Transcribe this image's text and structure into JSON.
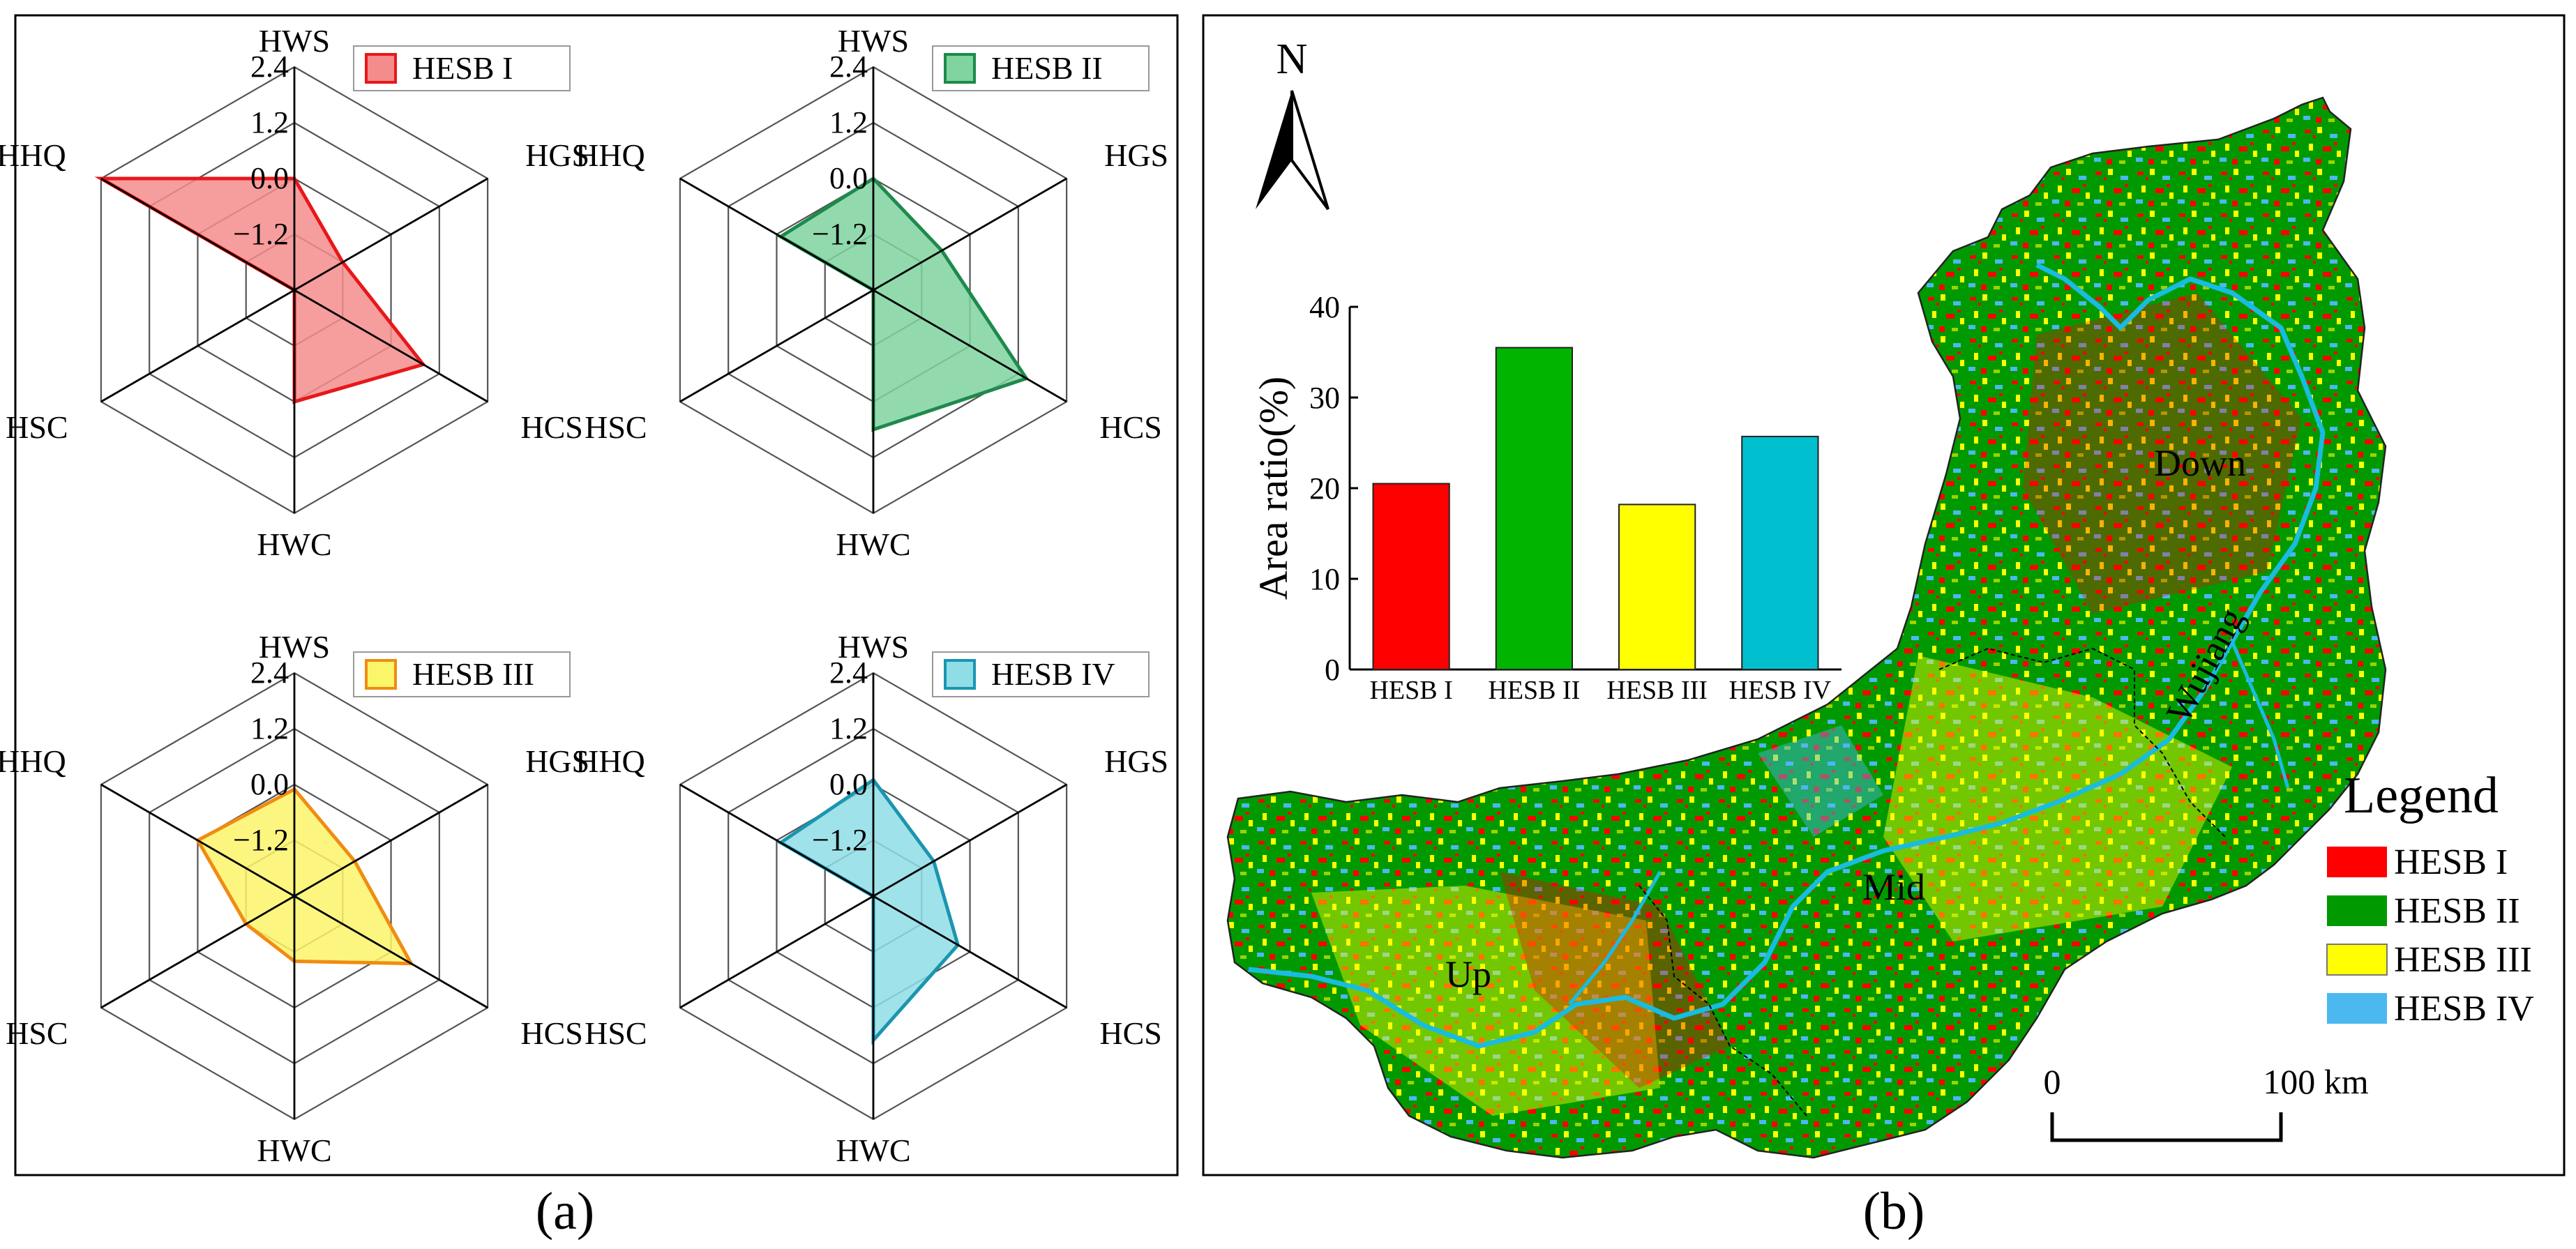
{
  "panel_labels": {
    "a": "(a)",
    "b": "(b)"
  },
  "colors": {
    "hesb1_fill": "#f58c8c",
    "hesb1_stroke": "#e8171a",
    "hesb2_fill": "#7fd4a0",
    "hesb2_stroke": "#1e8a4c",
    "hesb3_fill": "#fbf56a",
    "hesb3_stroke": "#f08c12",
    "hesb4_fill": "#8fdde6",
    "hesb4_stroke": "#1b95b0",
    "bar_hesb1": "#ff0000",
    "bar_hesb2": "#00b400",
    "bar_hesb3": "#ffff00",
    "bar_hesb4": "#00c0d0",
    "map_red": "#ff0000",
    "map_green": "#009a00",
    "map_yellow": "#ffff00",
    "map_blue": "#4cb8f0",
    "river": "#19bce0"
  },
  "chart_data": [
    {
      "type": "radar",
      "title": "HESB I",
      "axes": [
        "HWS",
        "HGS",
        "HCS",
        "HWC",
        "HSC",
        "HHQ"
      ],
      "tick_labels": [
        "2.4",
        "1.2",
        "0.0",
        "−1.2"
      ],
      "range": [
        -2.4,
        2.4
      ],
      "values": [
        0.0,
        -1.2,
        0.8,
        0.0,
        -2.4,
        2.4
      ]
    },
    {
      "type": "radar",
      "title": "HESB II",
      "axes": [
        "HWS",
        "HGS",
        "HCS",
        "HWC",
        "HSC",
        "HHQ"
      ],
      "tick_labels": [
        "2.4",
        "1.2",
        "0.0",
        "−1.2"
      ],
      "range": [
        -2.4,
        2.4
      ],
      "values": [
        0.0,
        -0.7,
        1.4,
        0.6,
        -2.4,
        -0.1
      ]
    },
    {
      "type": "radar",
      "title": "HESB III",
      "axes": [
        "HWS",
        "HGS",
        "HCS",
        "HWC",
        "HSC",
        "HHQ"
      ],
      "tick_labels": [
        "2.4",
        "1.2",
        "0.0",
        "−1.2"
      ],
      "range": [
        -2.4,
        2.4
      ],
      "values": [
        -0.1,
        -0.9,
        0.5,
        -1.0,
        -1.2,
        0.0
      ]
    },
    {
      "type": "radar",
      "title": "HESB IV",
      "axes": [
        "HWS",
        "HGS",
        "HCS",
        "HWC",
        "HSC",
        "HHQ"
      ],
      "tick_labels": [
        "2.4",
        "1.2",
        "0.0",
        "−1.2"
      ],
      "range": [
        -2.4,
        2.4
      ],
      "values": [
        0.1,
        -0.9,
        -0.3,
        0.7,
        -2.4,
        -0.1
      ]
    },
    {
      "type": "bar",
      "categories": [
        "HESB I",
        "HESB II",
        "HESB III",
        "HESB IV"
      ],
      "values": [
        20.5,
        35.5,
        18.2,
        25.7
      ],
      "xlabel": "",
      "ylabel": "Area ratio(%)",
      "ylim": [
        0,
        40
      ],
      "yticks": [
        "0",
        "10",
        "20",
        "30",
        "40"
      ]
    }
  ],
  "map": {
    "north_label": "N",
    "regions": {
      "down": "Down",
      "mid": "Mid",
      "up": "Up",
      "river": "Wujiang"
    },
    "legend_title": "Legend",
    "legend_items": [
      "HESB I",
      "HESB II",
      "HESB III",
      "HESB IV"
    ],
    "scale": {
      "start": "0",
      "end": "100 km"
    }
  }
}
